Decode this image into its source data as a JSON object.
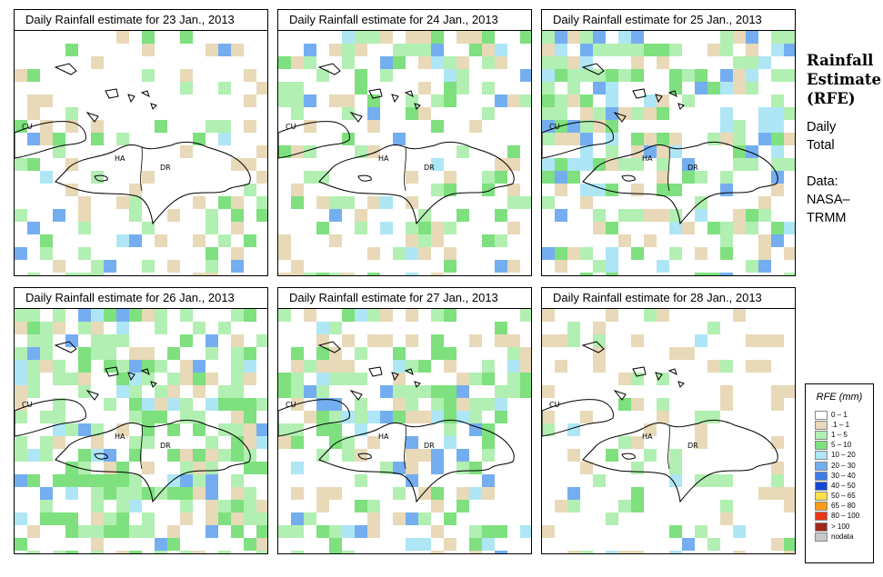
{
  "panels": [
    {
      "title": "Daily Rainfall estimate for  23 Jan., 2013",
      "seed": 23,
      "wet": 0.16,
      "veryWet": 0.03,
      "band": "south"
    },
    {
      "title": "Daily Rainfall estimate for  24 Jan., 2013",
      "seed": 24,
      "wet": 0.22,
      "veryWet": 0.05,
      "band": "north"
    },
    {
      "title": "Daily Rainfall estimate for  25 Jan., 2013",
      "seed": 25,
      "wet": 0.3,
      "veryWet": 0.1,
      "band": "northwest"
    },
    {
      "title": "Daily Rainfall estimate for  26 Jan., 2013",
      "seed": 26,
      "wet": 0.42,
      "veryWet": 0.08,
      "band": "wide"
    },
    {
      "title": "Daily Rainfall estimate for  27 Jan., 2013",
      "seed": 27,
      "wet": 0.36,
      "veryWet": 0.1,
      "band": "center"
    },
    {
      "title": "Daily Rainfall estimate for  28 Jan., 2013",
      "seed": 28,
      "wet": 0.1,
      "veryWet": 0.02,
      "band": "south"
    }
  ],
  "map_labels": {
    "cuba": "CU",
    "haiti": "HA",
    "dr": "DR"
  },
  "sidebar": {
    "title_line1": "Rainfall",
    "title_line2": "Estimate",
    "title_line3": "(RFE)",
    "period_line1": "Daily",
    "period_line2": "Total",
    "data_line1": "Data:",
    "data_line2": "NASA–",
    "data_line3": "TRMM"
  },
  "legend": {
    "title": "RFE (mm)",
    "items": [
      {
        "label": "0 – 1",
        "color": "#ffffff"
      },
      {
        "label": ".1 – 1",
        "color": "#e8d9b8"
      },
      {
        "label": "1 – 5",
        "color": "#b2efb2"
      },
      {
        "label": "5 – 10",
        "color": "#7ee07e"
      },
      {
        "label": "10 – 20",
        "color": "#aee6f5"
      },
      {
        "label": "20 – 30",
        "color": "#74aef0"
      },
      {
        "label": "30 – 40",
        "color": "#3d7be8"
      },
      {
        "label": "40 – 50",
        "color": "#1447d6"
      },
      {
        "label": "50 – 65",
        "color": "#ffe04a"
      },
      {
        "label": "65 – 80",
        "color": "#ff9a1a"
      },
      {
        "label": "80 – 100",
        "color": "#e8361a"
      },
      {
        "label": "> 100",
        "color": "#a0281a"
      },
      {
        "label": "nodata",
        "color": "#c8c8c8"
      }
    ]
  }
}
